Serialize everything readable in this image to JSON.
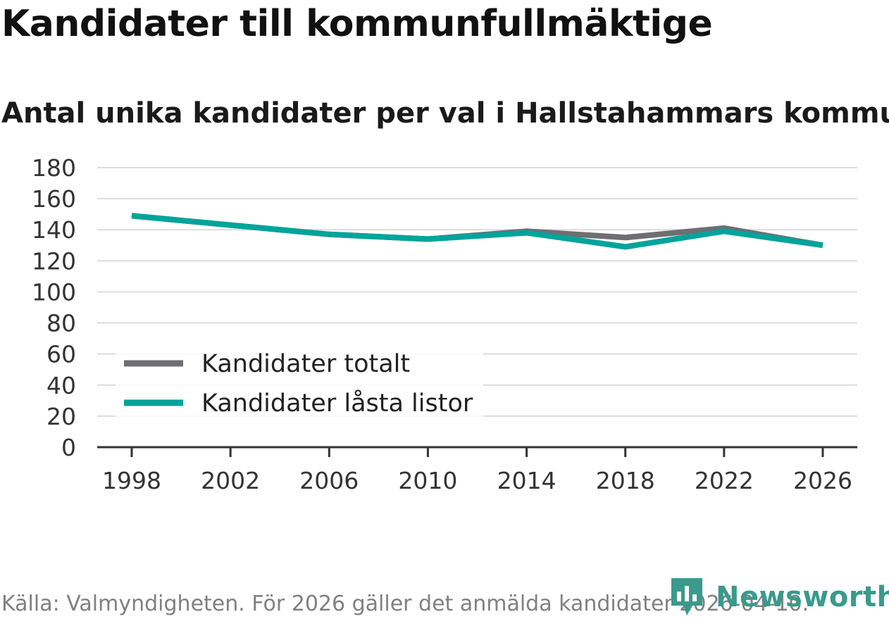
{
  "title": "Kandidater till kommunfullmäktige",
  "subtitle": "Antal unika kandidater per val i Hallstahammars kommun",
  "source": "Källa: Valmyndigheten. För 2026 gäller det anmälda kandidater 2026-04-10.",
  "brand": {
    "name": "Newsworthy",
    "color": "#3a9a8c",
    "icon": "bar-chart-speech-bubble-icon"
  },
  "chart_data": {
    "type": "line",
    "title": "Kandidater till kommunfullmäktige",
    "subtitle": "Antal unika kandidater per val i Hallstahammars kommun",
    "x": [
      1998,
      2002,
      2006,
      2010,
      2014,
      2018,
      2022,
      2026
    ],
    "series": [
      {
        "name": "Kandidater totalt",
        "color": "#6e6e73",
        "values": [
          149,
          143,
          137,
          134,
          139,
          135,
          141,
          130
        ]
      },
      {
        "name": "Kandidater låsta listor",
        "color": "#00a49b",
        "values": [
          149,
          143,
          137,
          134,
          138,
          129,
          139,
          130
        ]
      }
    ],
    "ylim": [
      0,
      180
    ],
    "yticks": [
      0,
      20,
      40,
      60,
      80,
      100,
      120,
      140,
      160,
      180
    ],
    "xticks": [
      1998,
      2002,
      2006,
      2010,
      2014,
      2018,
      2022,
      2026
    ],
    "xlabel": "",
    "ylabel": "",
    "grid": true,
    "legend": "bottom-left"
  }
}
